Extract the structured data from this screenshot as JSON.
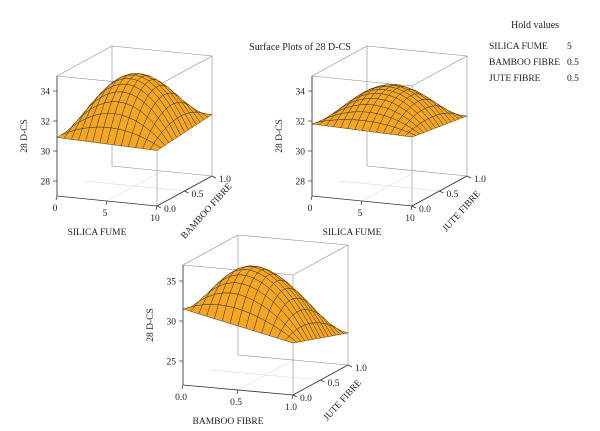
{
  "title": "Surface Plots of 28 D-CS",
  "hold_values": {
    "title": "Hold values",
    "items": [
      {
        "name": "SILICA FUME",
        "value": "5"
      },
      {
        "name": "BAMBOO FIBRE",
        "value": "0.5"
      },
      {
        "name": "JUTE FIBRE",
        "value": "0.5"
      }
    ]
  },
  "colors": {
    "surface": "#f5a623",
    "mesh": "#3a2a12",
    "axis": "#333333",
    "box": "#8a8a8a"
  },
  "chart_data": [
    {
      "type": "surface",
      "xlabel": "SILICA FUME",
      "ylabel": "BAMBOO FIBRE",
      "zlabel": "28 D-CS",
      "x_ticks": [
        "0",
        "5",
        "10"
      ],
      "y_ticks": [
        "0.0",
        "0.5",
        "1.0"
      ],
      "z_ticks": [
        "28",
        "30",
        "32",
        "34"
      ],
      "xlim": [
        0,
        10
      ],
      "ylim": [
        0,
        1
      ],
      "zlim": [
        27,
        35
      ],
      "surface": {
        "corner_x0_y0": 30.9,
        "corner_x10_y0": 30.7,
        "corner_x0_y1": 31.2,
        "corner_x10_y1": 31.1,
        "peak": 34.4,
        "peak_at": [
          5,
          0.5
        ]
      }
    },
    {
      "type": "surface",
      "xlabel": "SILICA FUME",
      "ylabel": "JUTE FIBRE",
      "zlabel": "28 D-CS",
      "x_ticks": [
        "0",
        "5",
        "10"
      ],
      "y_ticks": [
        "0.0",
        "0.5",
        "1.0"
      ],
      "z_ticks": [
        "28",
        "30",
        "32",
        "34"
      ],
      "xlim": [
        0,
        10
      ],
      "ylim": [
        0,
        1
      ],
      "zlim": [
        27,
        35
      ],
      "surface": {
        "corner_x0_y0": 31.8,
        "corner_x10_y0": 31.6,
        "corner_x0_y1": 31.2,
        "corner_x10_y1": 31.0,
        "peak": 33.6,
        "peak_at": [
          5,
          0.55
        ]
      }
    },
    {
      "type": "surface",
      "xlabel": "BAMBOO FIBRE",
      "ylabel": "JUTE FIBRE",
      "zlabel": "28 D-CS",
      "x_ticks": [
        "0.0",
        "0.5",
        "1.0"
      ],
      "y_ticks": [
        "0.0",
        "0.5",
        "1.0"
      ],
      "z_ticks": [
        "25",
        "30",
        "35"
      ],
      "xlim": [
        0,
        1
      ],
      "ylim": [
        0,
        1
      ],
      "zlim": [
        22,
        37
      ],
      "surface": {
        "corner_x0_y0": 31.5,
        "corner_x10_y0": 28.5,
        "corner_x0_y1": 29.5,
        "corner_x10_y1": 26.0,
        "peak": 35.6,
        "peak_at": [
          0.45,
          0.45
        ]
      }
    }
  ]
}
